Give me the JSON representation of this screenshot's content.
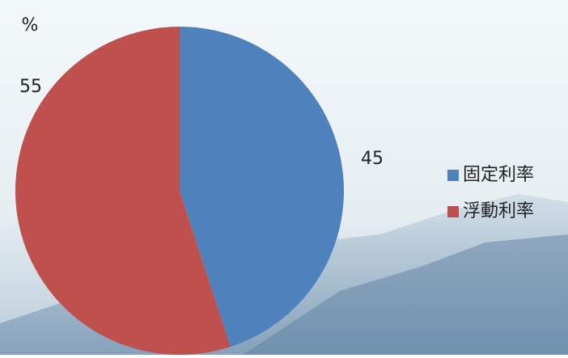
{
  "chart_data": {
    "type": "pie",
    "unit": "%",
    "categories": [
      "固定利率",
      "浮動利率"
    ],
    "values": [
      45,
      55
    ],
    "colors": [
      "#4f81bd",
      "#c0504d"
    ],
    "legend": "right"
  }
}
